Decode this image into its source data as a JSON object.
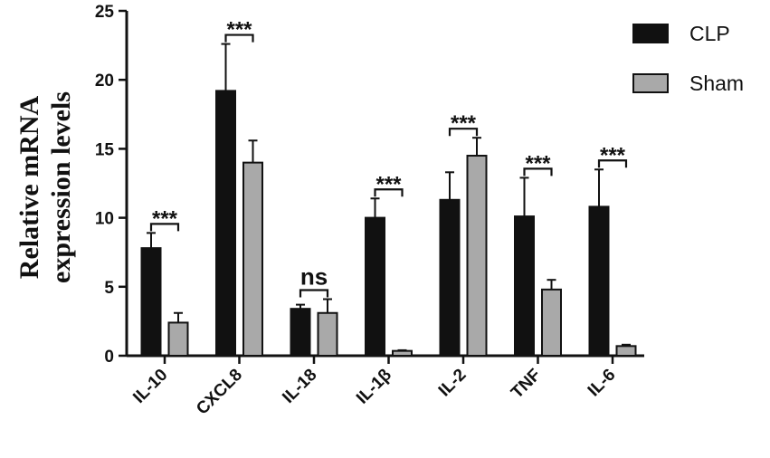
{
  "chart_data": {
    "type": "bar",
    "title": "",
    "xlabel": "",
    "ylabel_lines": [
      "Relative mRNA",
      "expression levels"
    ],
    "ylim": [
      0,
      25
    ],
    "yticks": [
      "0",
      "5",
      "10",
      "15",
      "20",
      "25"
    ],
    "categories": [
      "IL-10",
      "CXCL8",
      "IL-18",
      "IL-1β",
      "IL-2",
      "TNF",
      "IL-6"
    ],
    "series": [
      {
        "name": "CLP",
        "color": "#111111",
        "values": [
          7.8,
          19.2,
          3.4,
          10.0,
          11.3,
          10.1,
          10.8
        ],
        "errors": [
          1.1,
          3.4,
          0.3,
          1.4,
          2.0,
          2.8,
          2.7
        ]
      },
      {
        "name": "Sham",
        "color": "#a9a9a9",
        "values": [
          2.4,
          14.0,
          3.1,
          0.35,
          14.5,
          4.8,
          0.7
        ],
        "errors": [
          0.7,
          1.6,
          1.0,
          0.05,
          1.3,
          0.7,
          0.1
        ]
      }
    ],
    "significance": [
      "***",
      "***",
      "ns",
      "***",
      "***",
      "***",
      "***"
    ],
    "legend_position": "top-right",
    "grid": false
  }
}
